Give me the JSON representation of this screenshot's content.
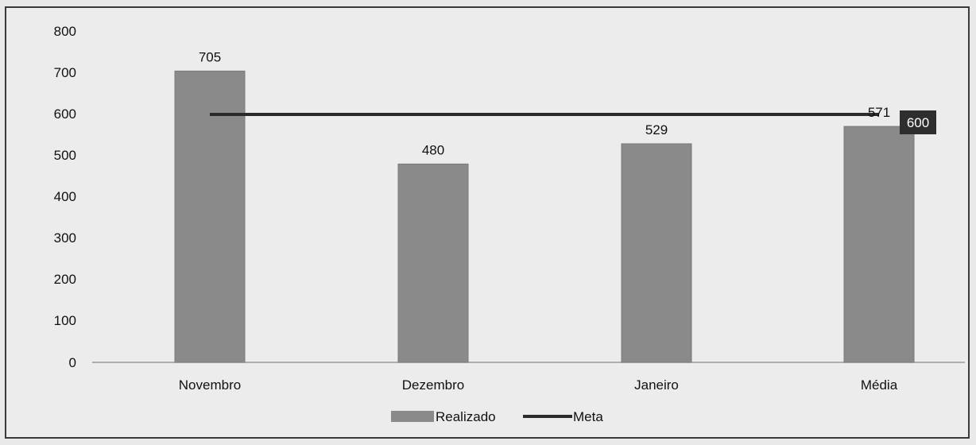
{
  "chart_data": {
    "type": "bar",
    "categories": [
      "Novembro",
      "Dezembro",
      "Janeiro",
      "Média"
    ],
    "series": [
      {
        "name": "Realizado",
        "type": "bar",
        "values": [
          705,
          480,
          529,
          571
        ],
        "color": "#8a8a8a"
      },
      {
        "name": "Meta",
        "type": "line",
        "values": [
          600,
          600,
          600,
          600
        ],
        "color": "#2b2b2b"
      }
    ],
    "data_labels": [
      "705",
      "480",
      "529",
      "571"
    ],
    "meta_label": "600",
    "yticks": [
      "0",
      "100",
      "200",
      "300",
      "400",
      "500",
      "600",
      "700",
      "800"
    ],
    "ylim": [
      0,
      800
    ],
    "grid": false,
    "legend_position": "bottom",
    "legend": {
      "bar_label": "Realizado",
      "line_label": "Meta"
    }
  }
}
